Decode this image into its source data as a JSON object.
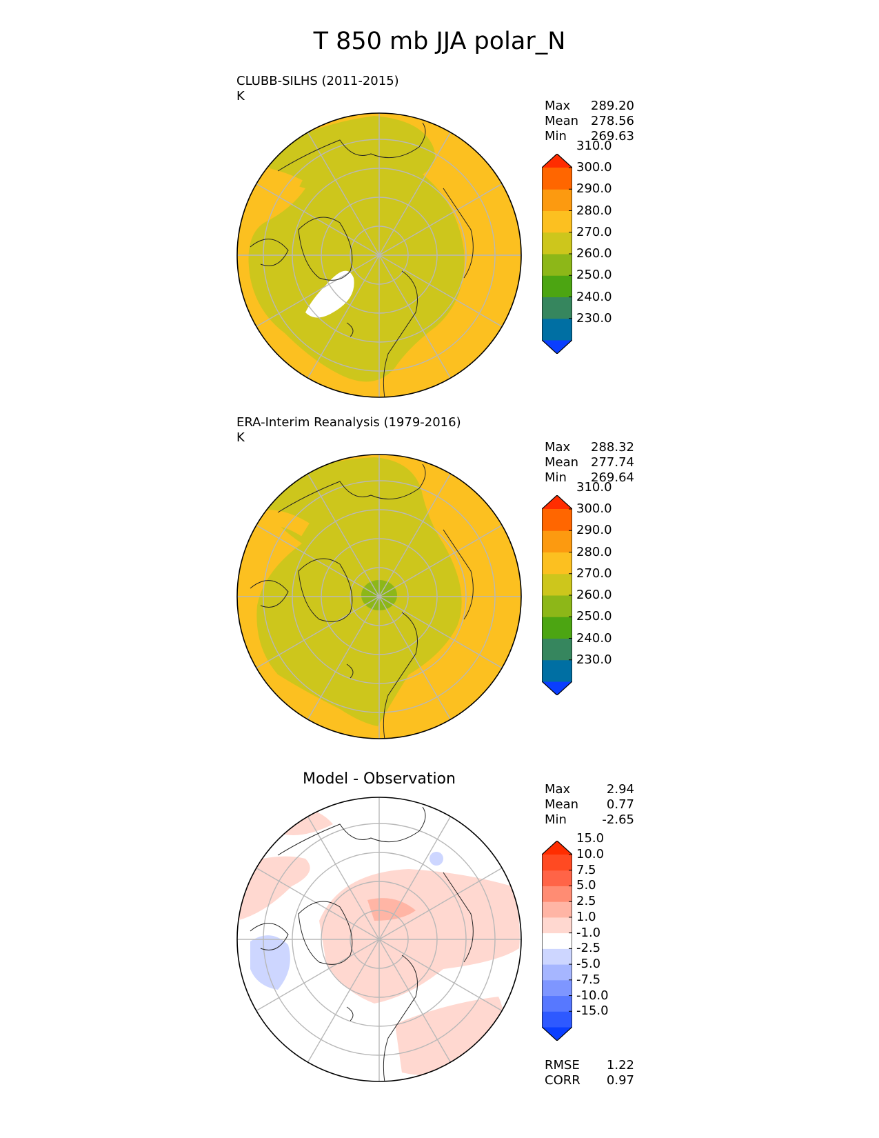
{
  "title": "T 850 mb JJA polar_N",
  "chart_data": [
    {
      "type": "heatmap",
      "projection": "north polar stereographic",
      "title": "CLUBB-SILHS (2011-2015)",
      "units": "K",
      "stats": {
        "Max": "289.20",
        "Mean": "278.56",
        "Min": "269.63"
      },
      "colorbar_levels": [
        "230.0",
        "240.0",
        "250.0",
        "260.0",
        "270.0",
        "280.0",
        "290.0",
        "300.0",
        "310.0"
      ],
      "colorbar_colors": [
        "#0a3eff",
        "#006fa3",
        "#36865e",
        "#4ca512",
        "#8db718",
        "#cdc61c",
        "#fcc020",
        "#fc9a10",
        "#ff6600",
        "#ff2d00"
      ]
    },
    {
      "type": "heatmap",
      "projection": "north polar stereographic",
      "title": "ERA-Interim Reanalysis (1979-2016)",
      "units": "K",
      "stats": {
        "Max": "288.32",
        "Mean": "277.74",
        "Min": "269.64"
      },
      "colorbar_levels": [
        "230.0",
        "240.0",
        "250.0",
        "260.0",
        "270.0",
        "280.0",
        "290.0",
        "300.0",
        "310.0"
      ],
      "colorbar_colors": [
        "#0a3eff",
        "#006fa3",
        "#36865e",
        "#4ca512",
        "#8db718",
        "#cdc61c",
        "#fcc020",
        "#fc9a10",
        "#ff6600",
        "#ff2d00"
      ]
    },
    {
      "type": "heatmap",
      "projection": "north polar stereographic",
      "title": "Model - Observation",
      "stats": {
        "Max": "2.94",
        "Mean": "0.77",
        "Min": "-2.65"
      },
      "metrics": {
        "RMSE": "1.22",
        "CORR": "0.97"
      },
      "colorbar_levels": [
        "-15.0",
        "-10.0",
        "-7.5",
        "-5.0",
        "-2.5",
        "-1.0",
        "1.0",
        "2.5",
        "5.0",
        "7.5",
        "10.0",
        "15.0"
      ],
      "colorbar_colors": [
        "#0a3eff",
        "#2e59ff",
        "#5778ff",
        "#7e96ff",
        "#a6b6ff",
        "#cdd6ff",
        "#ffffff",
        "#ffd8d0",
        "#ffb5a5",
        "#ff8c73",
        "#ff6447",
        "#ff4a22",
        "#ff2d00"
      ]
    }
  ]
}
